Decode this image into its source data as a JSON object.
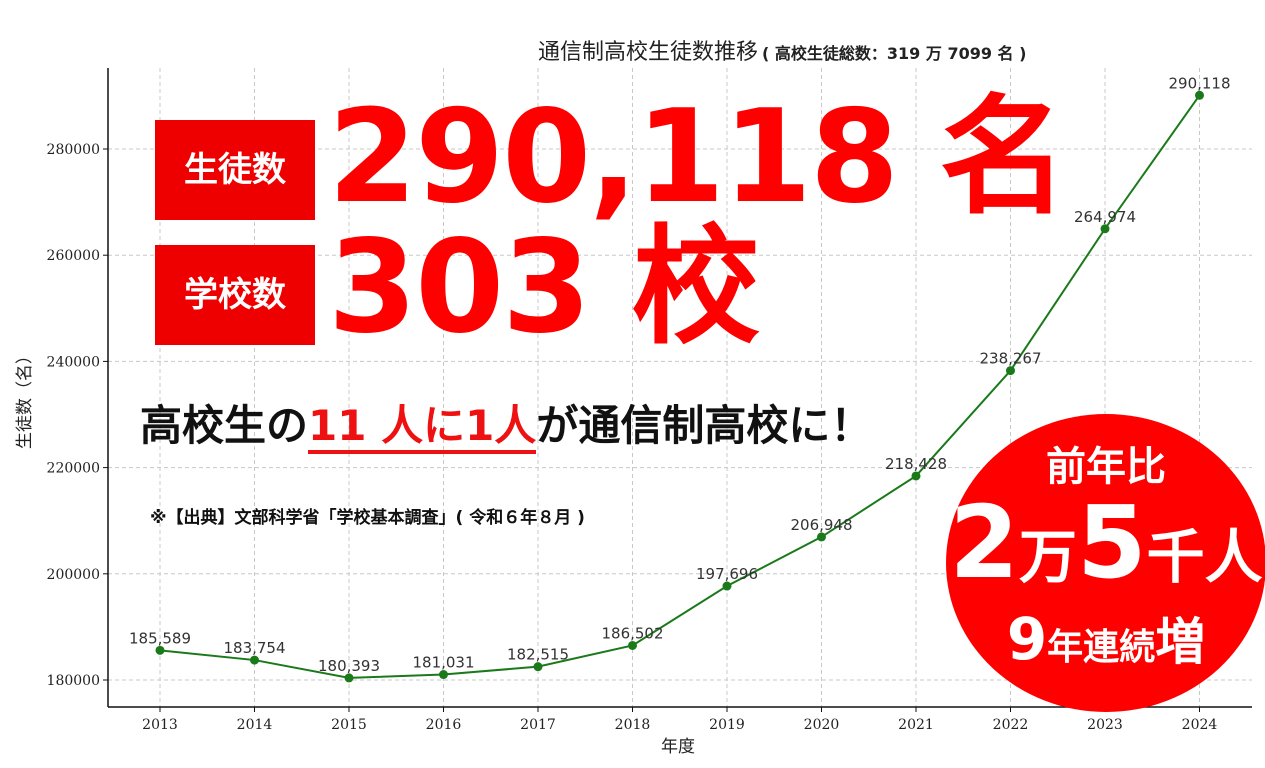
{
  "chart_data": {
    "type": "line",
    "title": "通信制高校生徒数推移",
    "subtitle": "( 高校生徒総数：319 万 7099 名 )",
    "xlabel": "年度",
    "ylabel": "生徒数（名）",
    "x": [
      2013,
      2014,
      2015,
      2016,
      2017,
      2018,
      2019,
      2020,
      2021,
      2022,
      2023,
      2024
    ],
    "values": [
      185589,
      183754,
      180393,
      181031,
      182515,
      186502,
      197696,
      206948,
      218428,
      238267,
      264974,
      290118
    ],
    "data_labels": [
      "185,589",
      "183,754",
      "180,393",
      "181,031",
      "182,515",
      "186,502",
      "197,696",
      "206,948",
      "218,428",
      "238,267",
      "264,974",
      "290,118"
    ],
    "yticks": [
      180000,
      200000,
      220000,
      240000,
      260000,
      280000
    ],
    "ylim": [
      175000,
      295000
    ],
    "xlim": [
      2012.5,
      2024.55
    ],
    "grid": true,
    "line_color": "#1a7a1a"
  },
  "overlay": {
    "students_tag": "生徒数",
    "students_value": "290,118 名",
    "schools_tag": "学校数",
    "schools_value": "303 校",
    "slogan_pre": "高校生の",
    "slogan_highlight": "11 人に1人",
    "slogan_post": "が通信制高校に！",
    "source": "※【出典】文部科学省「学校基本調査」( 令和６年８月 )"
  },
  "badge": {
    "line1": "前年比",
    "num1": "2",
    "unit1": "万",
    "num2": "5",
    "unit2": "千人",
    "num3": "9",
    "unit3": "年連続",
    "unit4": "増"
  },
  "colors": {
    "accent_red": "#ff0000",
    "line_green": "#1a7a1a"
  }
}
